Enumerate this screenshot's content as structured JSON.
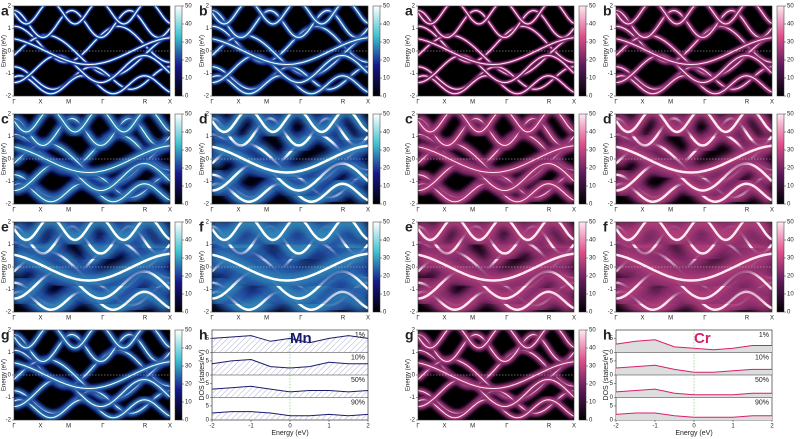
{
  "chart_data": [
    {
      "type": "band",
      "label": "a",
      "ylabel": "Energy (eV)",
      "categories": [
        "Γ",
        "X",
        "M",
        "Γ",
        "R",
        "X"
      ],
      "ylim": [
        -2,
        2
      ],
      "yticks": [
        -2,
        -1,
        0,
        1,
        2
      ],
      "clim": [
        0,
        50
      ],
      "cticks": [
        0,
        10,
        20,
        30,
        40,
        50
      ],
      "colors": [
        "#000000",
        "#16168a",
        "#3cc3cf",
        "#ffffff"
      ]
    },
    {
      "type": "band",
      "label": "b",
      "ylabel": "Energy (eV)",
      "categories": [
        "Γ",
        "X",
        "M",
        "Γ",
        "R",
        "X"
      ],
      "ylim": [
        -2,
        2
      ],
      "yticks": [
        -2,
        -1,
        0,
        1,
        2
      ],
      "clim": [
        0,
        50
      ],
      "cticks": [
        0,
        10,
        20,
        30,
        40,
        50
      ],
      "colors": [
        "#000000",
        "#16168a",
        "#3cc3cf",
        "#ffffff"
      ]
    },
    {
      "type": "band",
      "label": "c",
      "ylabel": "Energy (eV)",
      "categories": [
        "Γ",
        "X",
        "M",
        "Γ",
        "R",
        "X"
      ],
      "ylim": [
        -2,
        2
      ],
      "yticks": [
        -2,
        -1,
        0,
        1,
        2
      ],
      "clim": [
        0,
        50
      ],
      "cticks": [
        0,
        10,
        20,
        30,
        40,
        50
      ],
      "colors": [
        "#000000",
        "#16168a",
        "#3cc3cf",
        "#ffffff"
      ]
    },
    {
      "type": "band",
      "label": "d",
      "ylabel": "Energy (eV)",
      "categories": [
        "Γ",
        "X",
        "M",
        "Γ",
        "R",
        "X"
      ],
      "ylim": [
        -2,
        2
      ],
      "yticks": [
        -2,
        -1,
        0,
        1,
        2
      ],
      "clim": [
        0,
        50
      ],
      "cticks": [
        0,
        10,
        20,
        30,
        40,
        50
      ],
      "colors": [
        "#000000",
        "#16168a",
        "#3cc3cf",
        "#ffffff"
      ]
    },
    {
      "type": "band",
      "label": "e",
      "ylabel": "Energy (eV)",
      "categories": [
        "Γ",
        "X",
        "M",
        "Γ",
        "R",
        "X"
      ],
      "ylim": [
        -2,
        2
      ],
      "yticks": [
        -2,
        -1,
        0,
        1,
        2
      ],
      "clim": [
        0,
        50
      ],
      "cticks": [
        0,
        10,
        20,
        30,
        40,
        50
      ],
      "colors": [
        "#000000",
        "#16168a",
        "#3cc3cf",
        "#ffffff"
      ]
    },
    {
      "type": "band",
      "label": "f",
      "ylabel": "Energy (eV)",
      "categories": [
        "Γ",
        "X",
        "M",
        "Γ",
        "R",
        "X"
      ],
      "ylim": [
        -2,
        2
      ],
      "yticks": [
        -2,
        -1,
        0,
        1,
        2
      ],
      "clim": [
        0,
        50
      ],
      "cticks": [
        0,
        10,
        20,
        30,
        40,
        50
      ],
      "colors": [
        "#000000",
        "#16168a",
        "#3cc3cf",
        "#ffffff"
      ]
    },
    {
      "type": "band",
      "label": "g",
      "ylabel": "Energy (eV)",
      "categories": [
        "Γ",
        "X",
        "M",
        "Γ",
        "R",
        "X"
      ],
      "ylim": [
        -2,
        2
      ],
      "yticks": [
        -2,
        -1,
        0,
        1,
        2
      ],
      "clim": [
        0,
        50
      ],
      "cticks": [
        0,
        10,
        20,
        30,
        40,
        50
      ],
      "colors": [
        "#000000",
        "#16168a",
        "#3cc3cf",
        "#ffffff"
      ]
    },
    {
      "type": "dos",
      "label": "h",
      "annotation": "Mn",
      "xlabel": "Energy (eV)",
      "ylabel": "DOS (states/eV)",
      "xlim": [
        -2,
        2
      ],
      "xticks": [
        -2,
        -1,
        0,
        1,
        2
      ],
      "ylim": [
        0,
        8
      ],
      "yticks": [
        0,
        5
      ],
      "x": [
        -2,
        -1.5,
        -1,
        -0.5,
        0,
        0.5,
        1,
        1.5,
        2
      ],
      "series": [
        {
          "name": "1%",
          "color": "#1c1c6e",
          "values": [
            5,
            5.5,
            6,
            4,
            5,
            3.5,
            5,
            6,
            5
          ]
        },
        {
          "name": "10%",
          "color": "#1c1c6e",
          "values": [
            4,
            5,
            5.5,
            3,
            2.5,
            3,
            4.5,
            4,
            4
          ]
        },
        {
          "name": "50%",
          "color": "#1c1c6e",
          "values": [
            3,
            3.5,
            4,
            3,
            2,
            2.5,
            2.5,
            2,
            2.5
          ]
        },
        {
          "name": "90%",
          "color": "#1c1c6e",
          "values": [
            2.5,
            3,
            3,
            2.5,
            1.5,
            1.5,
            2,
            1.5,
            2
          ]
        }
      ]
    },
    {
      "type": "band",
      "label": "a",
      "ylabel": "Energy (eV)",
      "categories": [
        "Γ",
        "X",
        "M",
        "Γ",
        "R",
        "X"
      ],
      "ylim": [
        -2,
        2
      ],
      "yticks": [
        -2,
        -1,
        0,
        1,
        2
      ],
      "clim": [
        0,
        50
      ],
      "cticks": [
        0,
        10,
        20,
        30,
        40,
        50
      ],
      "colors": [
        "#000000",
        "#5a1a5a",
        "#e0508c",
        "#ffe8f2"
      ]
    },
    {
      "type": "band",
      "label": "b",
      "ylabel": "Energy (eV)",
      "categories": [
        "Γ",
        "X",
        "M",
        "Γ",
        "R",
        "X"
      ],
      "ylim": [
        -2,
        2
      ],
      "yticks": [
        -2,
        -1,
        0,
        1,
        2
      ],
      "clim": [
        0,
        50
      ],
      "cticks": [
        0,
        10,
        20,
        30,
        40,
        50
      ],
      "colors": [
        "#000000",
        "#5a1a5a",
        "#e0508c",
        "#ffe8f2"
      ]
    },
    {
      "type": "band",
      "label": "c",
      "ylabel": "Energy (eV)",
      "categories": [
        "Γ",
        "X",
        "M",
        "Γ",
        "R",
        "X"
      ],
      "ylim": [
        -2,
        2
      ],
      "yticks": [
        -2,
        -1,
        0,
        1,
        2
      ],
      "clim": [
        0,
        50
      ],
      "cticks": [
        0,
        10,
        20,
        30,
        40,
        50
      ],
      "colors": [
        "#000000",
        "#5a1a5a",
        "#e0508c",
        "#ffe8f2"
      ]
    },
    {
      "type": "band",
      "label": "d",
      "ylabel": "Energy (eV)",
      "categories": [
        "Γ",
        "X",
        "M",
        "Γ",
        "R",
        "X"
      ],
      "ylim": [
        -2,
        2
      ],
      "yticks": [
        -2,
        -1,
        0,
        1,
        2
      ],
      "clim": [
        0,
        50
      ],
      "cticks": [
        0,
        10,
        20,
        30,
        40,
        50
      ],
      "colors": [
        "#000000",
        "#5a1a5a",
        "#e0508c",
        "#ffe8f2"
      ]
    },
    {
      "type": "band",
      "label": "e",
      "ylabel": "Energy (eV)",
      "categories": [
        "Γ",
        "X",
        "M",
        "Γ",
        "R",
        "X"
      ],
      "ylim": [
        -2,
        2
      ],
      "yticks": [
        -2,
        -1,
        0,
        1,
        2
      ],
      "clim": [
        0,
        50
      ],
      "cticks": [
        0,
        10,
        20,
        30,
        40,
        50
      ],
      "colors": [
        "#000000",
        "#5a1a5a",
        "#e0508c",
        "#ffe8f2"
      ]
    },
    {
      "type": "band",
      "label": "f",
      "ylabel": "Energy (eV)",
      "categories": [
        "Γ",
        "X",
        "M",
        "Γ",
        "R",
        "X"
      ],
      "ylim": [
        -2,
        2
      ],
      "yticks": [
        -2,
        -1,
        0,
        1,
        2
      ],
      "clim": [
        0,
        50
      ],
      "cticks": [
        0,
        10,
        20,
        30,
        40,
        50
      ],
      "colors": [
        "#000000",
        "#5a1a5a",
        "#e0508c",
        "#ffe8f2"
      ]
    },
    {
      "type": "band",
      "label": "g",
      "ylabel": "Energy (eV)",
      "categories": [
        "Γ",
        "X",
        "M",
        "Γ",
        "R",
        "X"
      ],
      "ylim": [
        -2,
        2
      ],
      "yticks": [
        -2,
        -1,
        0,
        1,
        2
      ],
      "clim": [
        0,
        50
      ],
      "cticks": [
        0,
        10,
        20,
        30,
        40,
        50
      ],
      "colors": [
        "#000000",
        "#5a1a5a",
        "#e0508c",
        "#ffe8f2"
      ]
    },
    {
      "type": "dos",
      "label": "h",
      "annotation": "Cr",
      "xlabel": "Energy (eV)",
      "ylabel": "DOS (states/eV)",
      "xlim": [
        -2,
        2
      ],
      "xticks": [
        -2,
        -1,
        0,
        1,
        2
      ],
      "ylim": [
        0,
        8
      ],
      "yticks": [
        0,
        5
      ],
      "x": [
        -2,
        -1.5,
        -1,
        -0.5,
        0,
        0.5,
        1,
        1.5,
        2
      ],
      "series": [
        {
          "name": "1%",
          "color": "#d6216f",
          "values": [
            3,
            4,
            4.5,
            2,
            1.5,
            1,
            1.5,
            2.5,
            2.5
          ]
        },
        {
          "name": "10%",
          "color": "#d6216f",
          "values": [
            2.5,
            3,
            3.5,
            2,
            1,
            1,
            1.5,
            2,
            2
          ]
        },
        {
          "name": "50%",
          "color": "#d6216f",
          "values": [
            2,
            2.5,
            3,
            1.5,
            1,
            1,
            1,
            1.5,
            1.5
          ]
        },
        {
          "name": "90%",
          "color": "#d6216f",
          "values": [
            2,
            2.5,
            2.5,
            1.5,
            1,
            1,
            1,
            1.5,
            1.5
          ]
        }
      ]
    }
  ]
}
